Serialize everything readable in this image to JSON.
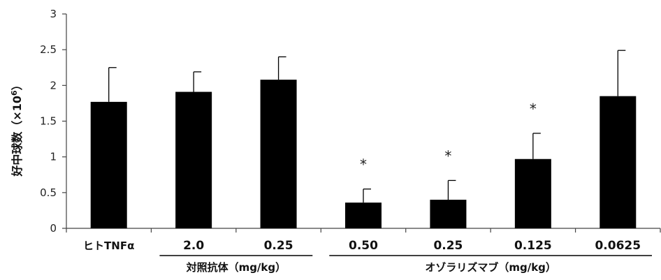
{
  "chart_data": {
    "type": "bar",
    "ylabel": "好中球数（×10",
    "ylabel_exp": "6",
    "ylabel_close": "）",
    "ylim": [
      0,
      3
    ],
    "yticks": [
      "0",
      "0.5",
      "1",
      "1.5",
      "2",
      "2.5",
      "3"
    ],
    "categories": [
      "ヒトTNFα",
      "2.0",
      "0.25",
      "0.50",
      "0.25",
      "0.125",
      "0.0625"
    ],
    "values": [
      1.77,
      1.91,
      2.08,
      0.36,
      0.4,
      0.97,
      1.85
    ],
    "error_upper": [
      2.25,
      2.19,
      2.4,
      0.55,
      0.67,
      1.33,
      2.49
    ],
    "significance": [
      "",
      "",
      "",
      "*",
      "*",
      "*",
      ""
    ],
    "groups": [
      {
        "label": "対照抗体（mg/kg）",
        "from": 1,
        "to": 2
      },
      {
        "label": "オゾラリズマブ（mg/kg）",
        "from": 3,
        "to": 6
      }
    ],
    "bar_color": "#000000"
  }
}
